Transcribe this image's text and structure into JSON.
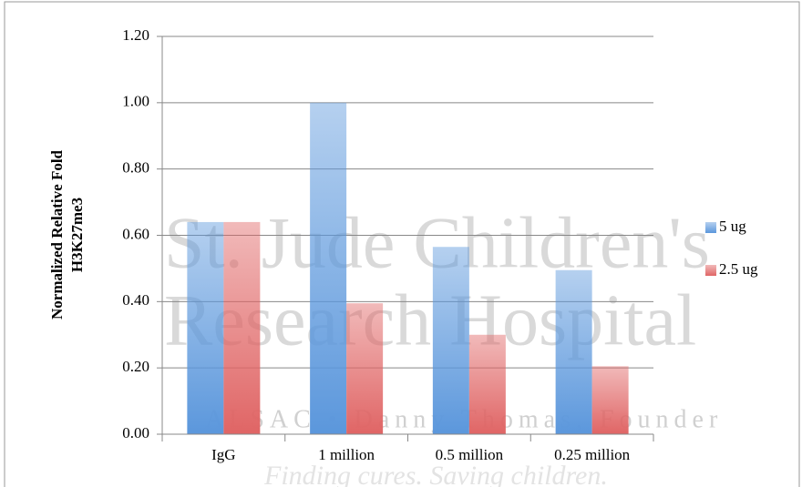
{
  "chart_data": {
    "type": "bar",
    "ylabel": [
      "Normalized Relative Fold",
      "H3K27me3"
    ],
    "categories": [
      "IgG",
      "1 million",
      "0.5 million",
      "0.25 million"
    ],
    "series": [
      {
        "name": "5 ug",
        "color": "#5b97dc",
        "values": [
          0.64,
          1.0,
          0.565,
          0.495
        ]
      },
      {
        "name": "2.5 ug",
        "color": "#e06565",
        "values": [
          0.64,
          0.395,
          0.3,
          0.205
        ]
      }
    ],
    "ylim": [
      0,
      1.2
    ],
    "yticks": [
      {
        "value": 0,
        "label": "0.00"
      },
      {
        "value": 0.2,
        "label": "0.20"
      },
      {
        "value": 0.4,
        "label": "0.40"
      },
      {
        "value": 0.6,
        "label": "0.60"
      },
      {
        "value": 0.8,
        "label": "0.80"
      },
      {
        "value": 1.0,
        "label": "1.00"
      },
      {
        "value": 1.2,
        "label": "1.20"
      }
    ],
    "grid": true,
    "legend": "right",
    "watermark": [
      "St. Jude Children's",
      "Research Hospital",
      "ALSAC • Danny Thomas, Founder",
      "Finding cures. Saving children."
    ]
  }
}
